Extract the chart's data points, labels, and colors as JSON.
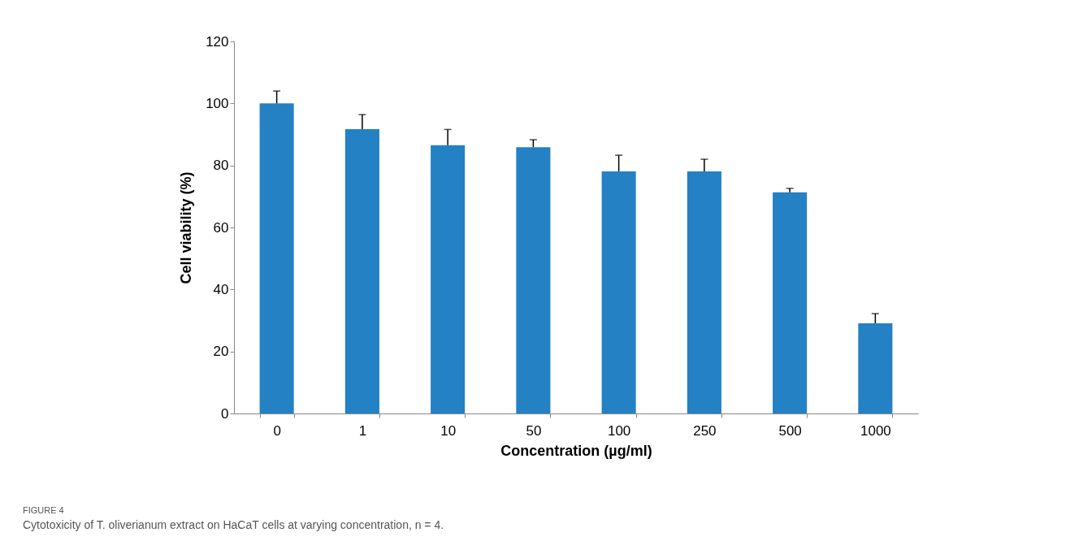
{
  "chart_data": {
    "type": "bar",
    "xlabel": "Concentration (µg/ml)",
    "ylabel": "Cell viability (%)",
    "categories": [
      "0",
      "1",
      "10",
      "50",
      "100",
      "250",
      "500",
      "1000"
    ],
    "values": [
      100,
      91.7,
      86.5,
      85.9,
      78.1,
      78.1,
      71.3,
      29.1
    ],
    "errors": [
      [
        100,
        104
      ],
      [
        91.7,
        96.4
      ],
      [
        86.5,
        91.6
      ],
      [
        85.9,
        88.3
      ],
      [
        78.1,
        83.3
      ],
      [
        78.1,
        82
      ],
      [
        71.3,
        72.6
      ],
      [
        29.1,
        32.2
      ]
    ],
    "color": "#2381c4",
    "ylim": [
      0,
      120
    ],
    "yticks": [
      0,
      20,
      40,
      60,
      80,
      100,
      120
    ],
    "grid": false,
    "annotations": [
      "FIGURE 4",
      "Cytotoxicity of T. oliverianum extract on HaCaT cells at varying concentration, n = 4."
    ]
  }
}
